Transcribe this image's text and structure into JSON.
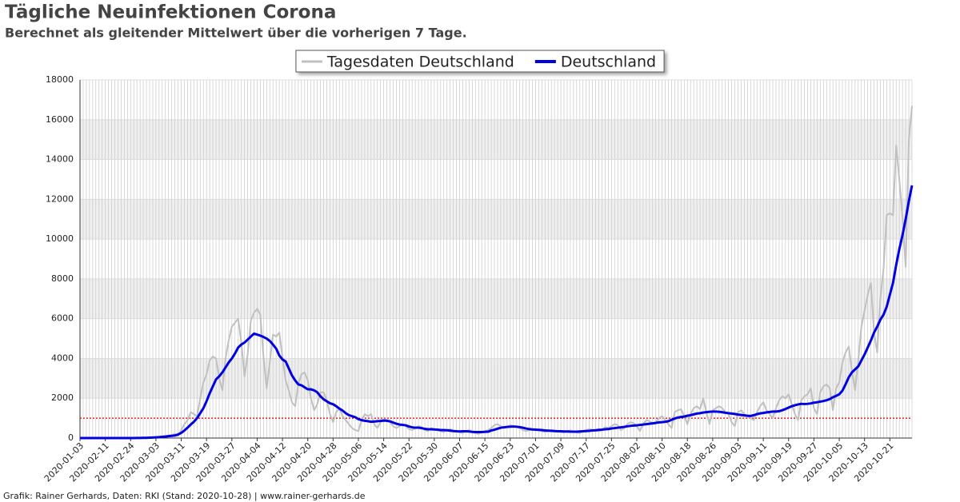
{
  "chart_data": {
    "type": "line",
    "title": "Tägliche Neuinfektionen Corona",
    "subtitle": "Berechnet als gleitender Mittelwert über die vorherigen 7 Tage.",
    "footer": "Grafik: Rainer Gerhards, Daten: RKI (Stand: 2020-10-28) | www.rainer-gerhards.de",
    "categories": [
      "2020-01-03",
      null,
      null,
      null,
      null,
      null,
      null,
      null,
      "2020-02-11",
      null,
      null,
      null,
      null,
      null,
      null,
      null,
      "2020-02-24",
      null,
      null,
      null,
      null,
      null,
      null,
      null,
      "2020-03-03",
      null,
      null,
      null,
      null,
      null,
      null,
      null,
      "2020-03-11",
      null,
      null,
      null,
      null,
      null,
      null,
      null,
      "2020-03-19",
      null,
      null,
      null,
      null,
      null,
      null,
      null,
      "2020-03-27",
      null,
      null,
      null,
      null,
      null,
      null,
      null,
      "2020-04-04",
      null,
      null,
      null,
      null,
      null,
      null,
      null,
      "2020-04-12",
      null,
      null,
      null,
      null,
      null,
      null,
      null,
      "2020-04-20",
      null,
      null,
      null,
      null,
      null,
      null,
      null,
      "2020-04-28",
      null,
      null,
      null,
      null,
      null,
      null,
      null,
      "2020-05-06",
      null,
      null,
      null,
      null,
      null,
      null,
      null,
      "2020-05-14",
      null,
      null,
      null,
      null,
      null,
      null,
      null,
      "2020-05-22",
      null,
      null,
      null,
      null,
      null,
      null,
      null,
      "2020-05-30",
      null,
      null,
      null,
      null,
      null,
      null,
      null,
      "2020-06-07",
      null,
      null,
      null,
      null,
      null,
      null,
      null,
      "2020-06-15",
      null,
      null,
      null,
      null,
      null,
      null,
      null,
      "2020-06-23",
      null,
      null,
      null,
      null,
      null,
      null,
      null,
      "2020-07-01",
      null,
      null,
      null,
      null,
      null,
      null,
      null,
      "2020-07-09",
      null,
      null,
      null,
      null,
      null,
      null,
      null,
      "2020-07-17",
      null,
      null,
      null,
      null,
      null,
      null,
      null,
      "2020-07-25",
      null,
      null,
      null,
      null,
      null,
      null,
      null,
      "2020-08-02",
      null,
      null,
      null,
      null,
      null,
      null,
      null,
      "2020-08-10",
      null,
      null,
      null,
      null,
      null,
      null,
      null,
      "2020-08-18",
      null,
      null,
      null,
      null,
      null,
      null,
      null,
      "2020-08-26",
      null,
      null,
      null,
      null,
      null,
      null,
      null,
      "2020-09-03",
      null,
      null,
      null,
      null,
      null,
      null,
      null,
      "2020-09-11",
      null,
      null,
      null,
      null,
      null,
      null,
      null,
      "2020-09-19",
      null,
      null,
      null,
      null,
      null,
      null,
      null,
      "2020-09-27",
      null,
      null,
      null,
      null,
      null,
      null,
      null,
      "2020-10-05",
      null,
      null,
      null,
      null,
      null,
      null,
      null,
      "2020-10-13",
      null,
      null,
      null,
      null,
      null,
      null,
      null,
      "2020-10-21",
      null,
      null,
      null,
      null,
      null,
      null,
      null
    ],
    "series": [
      {
        "name": "Tagesdaten Deutschland",
        "color": "#c0c0c0",
        "width": 2,
        "values": [
          0,
          0,
          0,
          0,
          0,
          0,
          0,
          0,
          0,
          0,
          0,
          0,
          0,
          0,
          0,
          0,
          2,
          5,
          3,
          10,
          15,
          20,
          30,
          40,
          50,
          60,
          80,
          100,
          130,
          150,
          200,
          120,
          400,
          700,
          900,
          1300,
          1200,
          1100,
          2000,
          2800,
          3200,
          3900,
          4100,
          4000,
          3000,
          2400,
          4000,
          4900,
          5600,
          5800,
          6000,
          4800,
          3100,
          4200,
          5900,
          6300,
          6500,
          6200,
          4100,
          2500,
          3800,
          5200,
          5100,
          5300,
          4100,
          2900,
          2400,
          1800,
          1600,
          2700,
          3200,
          3300,
          2900,
          2000,
          1400,
          1700,
          2300,
          2300,
          1900,
          1200,
          800,
          1300,
          1500,
          1100,
          900,
          700,
          500,
          400,
          350,
          900,
          1200,
          1100,
          1200,
          700,
          500,
          800,
          950,
          900,
          800,
          600,
          500,
          600,
          700,
          600,
          450,
          400,
          500,
          600,
          550,
          400,
          350,
          500,
          450,
          400,
          350,
          300,
          400,
          450,
          380,
          330,
          300,
          250,
          350,
          400,
          300,
          250,
          200,
          300,
          350,
          400,
          500,
          650,
          700,
          600,
          500,
          550,
          650,
          600,
          550,
          500,
          400,
          350,
          400,
          450,
          450,
          400,
          350,
          300,
          350,
          400,
          380,
          330,
          300,
          280,
          350,
          380,
          320,
          280,
          250,
          350,
          400,
          450,
          420,
          380,
          350,
          400,
          550,
          500,
          600,
          700,
          650,
          400,
          500,
          700,
          800,
          750,
          600,
          350,
          700,
          900,
          850,
          750,
          800,
          1000,
          1100,
          900,
          700,
          500,
          1300,
          1400,
          1450,
          1100,
          700,
          1200,
          1500,
          1600,
          1450,
          2000,
          1300,
          700,
          1400,
          1500,
          1600,
          1500,
          1300,
          1200,
          800,
          600,
          1300,
          1400,
          1200,
          1100,
          1000,
          900,
          1300,
          1600,
          1800,
          1400,
          1200,
          1000,
          1500,
          1900,
          2100,
          2000,
          2200,
          1700,
          1200,
          900,
          1900,
          2100,
          2200,
          2500,
          1500,
          1200,
          2300,
          2600,
          2700,
          2500,
          1400,
          2500,
          2800,
          3800,
          4300,
          4600,
          3400,
          2400,
          3900,
          5600,
          6400,
          7200,
          7800,
          5300,
          4300,
          7000,
          8500,
          11200,
          11300,
          11200,
          14700,
          13000,
          11100,
          8600,
          15000,
          16700
        ]
      },
      {
        "name": "Deutschland",
        "color": "#0000e0",
        "width": 3,
        "values": [
          0,
          0,
          0,
          0,
          0,
          0,
          0,
          0,
          0,
          0,
          0,
          0,
          0,
          0,
          0,
          0,
          1,
          2,
          3,
          5,
          8,
          12,
          18,
          26,
          35,
          45,
          60,
          75,
          95,
          110,
          130,
          180,
          260,
          380,
          520,
          680,
          820,
          1000,
          1250,
          1500,
          1850,
          2250,
          2600,
          2950,
          3100,
          3300,
          3550,
          3800,
          4000,
          4250,
          4550,
          4700,
          4800,
          4950,
          5100,
          5250,
          5200,
          5150,
          5080,
          5000,
          4880,
          4700,
          4500,
          4150,
          3950,
          3850,
          3500,
          3150,
          2900,
          2700,
          2650,
          2550,
          2450,
          2450,
          2400,
          2300,
          2100,
          1950,
          1850,
          1750,
          1700,
          1600,
          1480,
          1380,
          1250,
          1150,
          1100,
          1050,
          950,
          900,
          870,
          850,
          820,
          830,
          850,
          860,
          880,
          870,
          840,
          780,
          720,
          680,
          660,
          640,
          580,
          540,
          520,
          520,
          500,
          460,
          440,
          440,
          430,
          420,
          400,
          400,
          390,
          370,
          350,
          340,
          330,
          340,
          340,
          330,
          310,
          300,
          300,
          300,
          310,
          320,
          380,
          420,
          470,
          520,
          540,
          560,
          570,
          580,
          570,
          550,
          520,
          480,
          450,
          430,
          420,
          410,
          400,
          380,
          370,
          360,
          350,
          340,
          340,
          330,
          330,
          320,
          320,
          320,
          330,
          340,
          350,
          360,
          380,
          390,
          410,
          420,
          440,
          450,
          480,
          500,
          520,
          540,
          560,
          590,
          610,
          630,
          640,
          660,
          680,
          700,
          720,
          740,
          760,
          790,
          800,
          820,
          850,
          920,
          980,
          1030,
          1060,
          1080,
          1120,
          1150,
          1190,
          1230,
          1250,
          1280,
          1300,
          1320,
          1330,
          1330,
          1320,
          1300,
          1270,
          1250,
          1230,
          1210,
          1180,
          1160,
          1140,
          1120,
          1110,
          1150,
          1200,
          1240,
          1260,
          1290,
          1310,
          1330,
          1330,
          1350,
          1400,
          1460,
          1530,
          1600,
          1650,
          1690,
          1720,
          1710,
          1720,
          1740,
          1780,
          1800,
          1830,
          1860,
          1900,
          1960,
          2050,
          2120,
          2200,
          2380,
          2700,
          3050,
          3300,
          3450,
          3600,
          3900,
          4200,
          4550,
          4900,
          5300,
          5600,
          5950,
          6200,
          6600,
          7200,
          7800,
          8700,
          9500,
          10200,
          11000,
          11900,
          12700
        ]
      }
    ],
    "reference_line": {
      "value": 1000,
      "color": "#cc0000"
    },
    "ylim": [
      0,
      18000
    ],
    "yticks": [
      0,
      2000,
      4000,
      6000,
      8000,
      10000,
      12000,
      14000,
      16000,
      18000
    ],
    "grid": true,
    "legend": "top"
  }
}
